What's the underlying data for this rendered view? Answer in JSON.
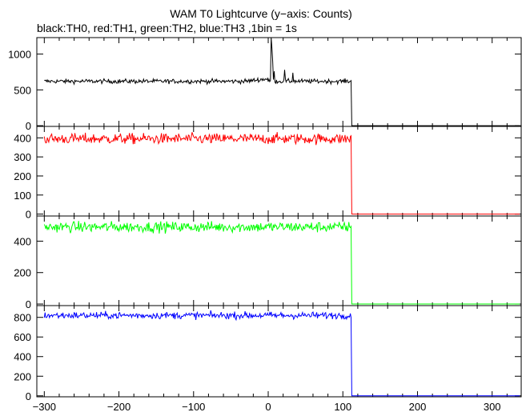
{
  "title": "WAM T0 Lightcurve (y−axis: Counts)",
  "subtitle": "black:TH0, red:TH1, green:TH2, blue:TH3 ,1bin = 1s",
  "chart_data": {
    "type": "line",
    "x_range": [
      -310,
      340
    ],
    "x_ticks": [
      -300,
      -200,
      -100,
      0,
      100,
      200,
      300
    ],
    "x_tick_labels": [
      "−300",
      "−200",
      "−100",
      "0",
      "100",
      "200",
      "300"
    ],
    "bin_seconds": 1,
    "panels": [
      {
        "name": "TH0",
        "color": "#000000",
        "ylim": [
          -10,
          1230
        ],
        "y_ticks": [
          0,
          500,
          1000
        ],
        "y_tick_labels": [
          "0",
          "500",
          "1000"
        ],
        "baseline": 620,
        "noise": 22,
        "drop_at": 112,
        "after_value": 0,
        "features": [
          {
            "x": 4,
            "y": 1230
          },
          {
            "x": 5,
            "y": 1080
          },
          {
            "x": 6,
            "y": 900
          },
          {
            "x": 8,
            "y": 760
          },
          {
            "x": 22,
            "y": 780
          },
          {
            "x": 33,
            "y": 740
          }
        ]
      },
      {
        "name": "TH1",
        "color": "#ff0000",
        "ylim": [
          -10,
          460
        ],
        "y_ticks": [
          0,
          100,
          200,
          300,
          400
        ],
        "y_tick_labels": [
          "0",
          "100",
          "200",
          "300",
          "400"
        ],
        "baseline": 395,
        "noise": 20,
        "drop_at": 112,
        "after_value": 0,
        "features": []
      },
      {
        "name": "TH2",
        "color": "#00ff00",
        "ylim": [
          -10,
          560
        ],
        "y_ticks": [
          0,
          200,
          400
        ],
        "y_tick_labels": [
          "0",
          "200",
          "400"
        ],
        "baseline": 490,
        "noise": 24,
        "drop_at": 112,
        "after_value": 0,
        "features": []
      },
      {
        "name": "TH3",
        "color": "#0000ff",
        "ylim": [
          -10,
          920
        ],
        "y_ticks": [
          0,
          200,
          400,
          600,
          800
        ],
        "y_tick_labels": [
          "0",
          "200",
          "400",
          "600",
          "800"
        ],
        "baseline": 820,
        "noise": 25,
        "drop_at": 112,
        "after_value": 0,
        "features": []
      }
    ]
  }
}
